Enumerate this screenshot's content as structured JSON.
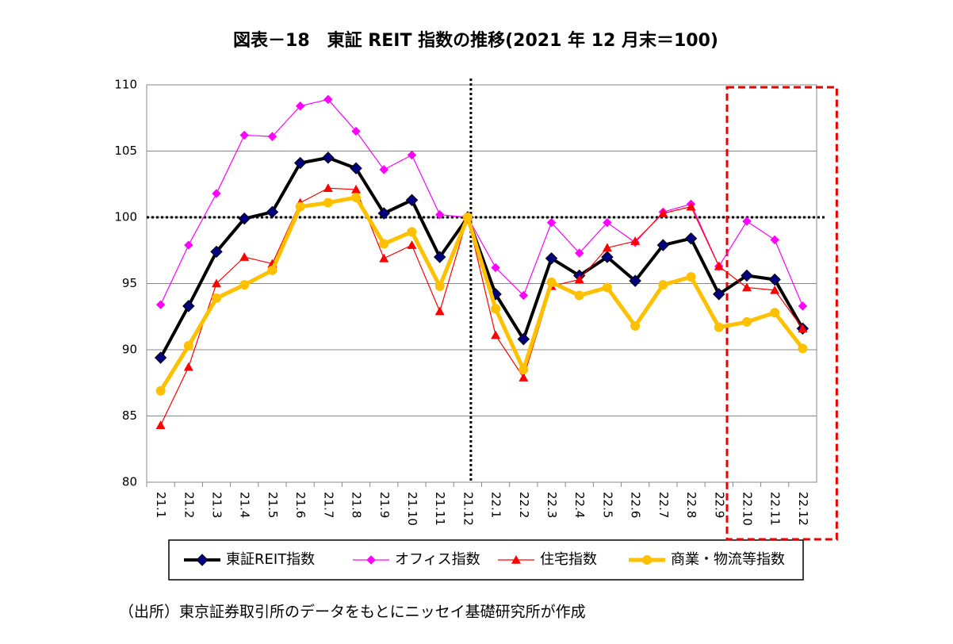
{
  "chart_data": {
    "type": "line",
    "title": "図表－18　東証 REIT 指数の推移(2021 年 12 月末＝100)",
    "categories": [
      "21.1",
      "21.2",
      "21.3",
      "21.4",
      "21.5",
      "21.6",
      "21.7",
      "21.8",
      "21.9",
      "21.10",
      "21.11",
      "21.12",
      "22.1",
      "22.2",
      "22.3",
      "22.4",
      "22.5",
      "22.6",
      "22.7",
      "22.8",
      "22.9",
      "22.10",
      "22.11",
      "22.12"
    ],
    "series": [
      {
        "name": "東証REIT指数",
        "color": "#000000",
        "marker": "diamond",
        "values": [
          89.4,
          93.3,
          97.4,
          99.9,
          100.4,
          104.1,
          104.5,
          103.7,
          100.3,
          101.3,
          97.0,
          100,
          94.2,
          90.8,
          96.9,
          95.6,
          97.0,
          95.2,
          97.9,
          98.4,
          94.2,
          95.6,
          95.3,
          91.6
        ]
      },
      {
        "name": "オフィス指数",
        "color": "#ff00ff",
        "marker": "diamond",
        "values": [
          93.4,
          97.9,
          101.8,
          106.2,
          106.1,
          108.4,
          108.9,
          106.5,
          103.6,
          104.7,
          100.2,
          100,
          96.2,
          94.1,
          99.6,
          97.3,
          99.6,
          98.1,
          100.4,
          101.0,
          96.3,
          99.7,
          98.3,
          93.3
        ]
      },
      {
        "name": "住宅指数",
        "color": "#ff0000",
        "marker": "triangle",
        "values": [
          84.3,
          88.7,
          95.0,
          97.0,
          96.5,
          101.1,
          102.2,
          102.1,
          96.9,
          97.9,
          92.9,
          100,
          91.1,
          87.9,
          94.8,
          95.3,
          97.7,
          98.2,
          100.3,
          100.8,
          96.3,
          94.7,
          94.5,
          91.6
        ]
      },
      {
        "name": "商業・物流等指数",
        "color": "#ffc000",
        "marker": "circle",
        "values": [
          86.9,
          90.3,
          93.9,
          94.9,
          96.0,
          100.8,
          101.1,
          101.5,
          98.0,
          98.9,
          94.8,
          100,
          93.1,
          88.5,
          95.1,
          94.1,
          94.7,
          91.8,
          94.9,
          95.5,
          91.7,
          92.1,
          92.8,
          90.1
        ]
      }
    ],
    "ylim": [
      80,
      110
    ],
    "yticks": [
      80,
      85,
      90,
      95,
      100,
      105,
      110
    ],
    "grid": true,
    "hline": 100,
    "vline_category": "21.12",
    "highlight_categories": [
      "22.10",
      "22.12"
    ],
    "source": "（出所）東京証券取引所のデータをもとにニッセイ基礎研究所が作成"
  }
}
